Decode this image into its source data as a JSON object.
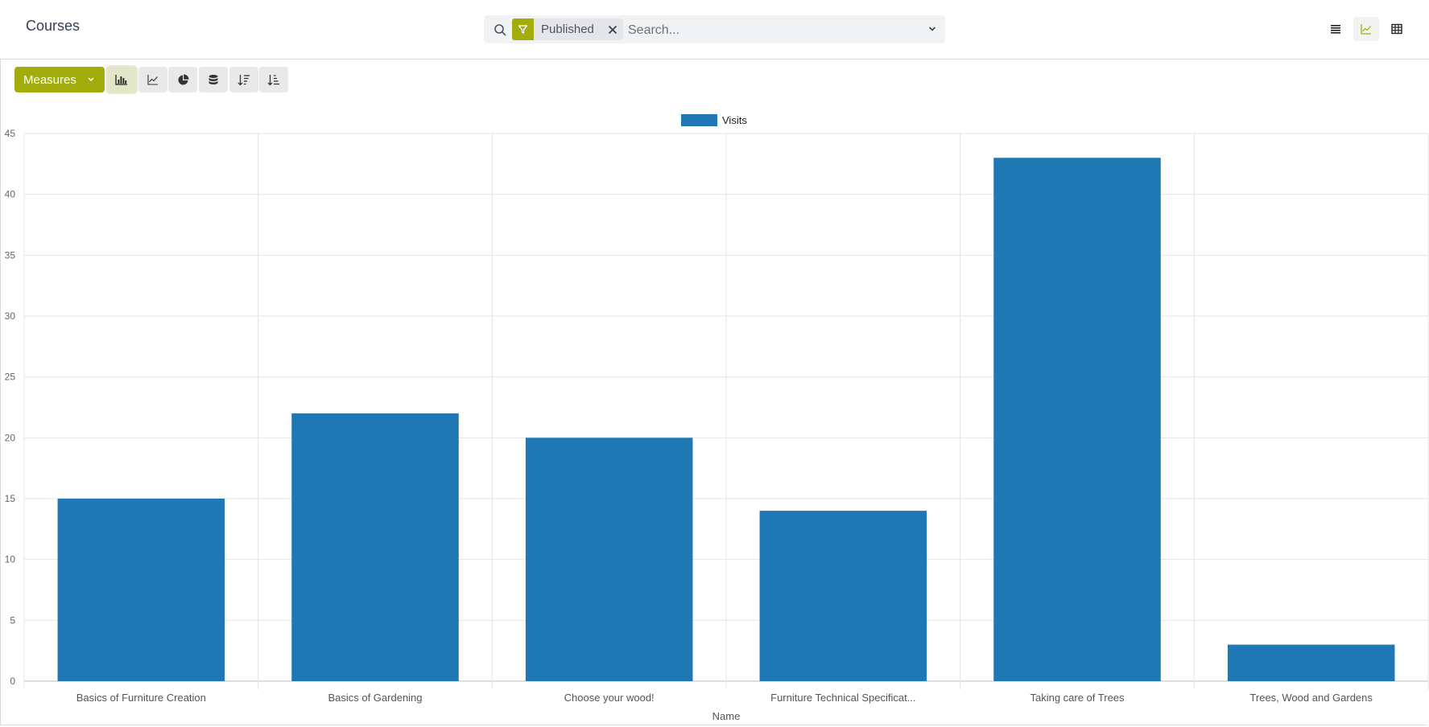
{
  "breadcrumb": {
    "title": "Courses"
  },
  "search": {
    "facet_label": "Published",
    "placeholder": "Search..."
  },
  "toolbar": {
    "measures_label": "Measures"
  },
  "icons": {
    "search": "search-icon",
    "filter": "filter-icon",
    "remove": "close-icon",
    "toggle": "chevron-down-icon",
    "list_view": "list-view-icon",
    "graph_view": "line-chart-icon",
    "pivot_view": "table-icon",
    "bar_chart": "bar-chart-icon",
    "line_chart": "line-chart-icon",
    "pie_chart": "pie-chart-icon",
    "stacked": "stack-icon",
    "sort_desc": "sort-descending-icon",
    "sort_asc": "sort-ascending-icon"
  },
  "colors": {
    "accent": "#a2ad0c",
    "bar": "#1f77b4"
  },
  "chart_data": {
    "type": "bar",
    "categories": [
      "Basics of Furniture Creation",
      "Basics of Gardening",
      "Choose your wood!",
      "Furniture Technical Specificat...",
      "Taking care of Trees",
      "Trees, Wood and Gardens"
    ],
    "series": [
      {
        "name": "Visits",
        "values": [
          15,
          22,
          20,
          14,
          43,
          3
        ]
      }
    ],
    "xlabel": "Name",
    "ylabel": "",
    "ylim": [
      0,
      45
    ],
    "yticks": [
      0,
      5,
      10,
      15,
      20,
      25,
      30,
      35,
      40,
      45
    ],
    "grid": true,
    "legend": "top-center"
  }
}
